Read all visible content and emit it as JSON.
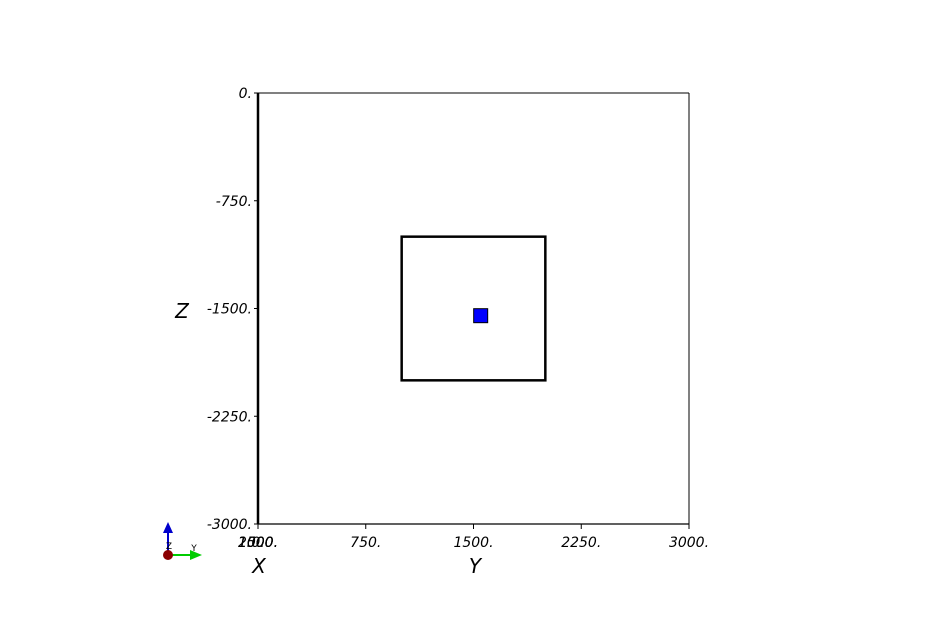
{
  "chart_data": {
    "type": "scatter",
    "xlabel": "Y",
    "ylabel": "Z",
    "x_axis_side_label": "X",
    "xlim": [
      0,
      3000
    ],
    "ylim": [
      -3000,
      0
    ],
    "x_ticks": [
      {
        "value": 0,
        "label": "0."
      },
      {
        "value": 750,
        "label": "750."
      },
      {
        "value": 1500,
        "label": "1500."
      },
      {
        "value": 2250,
        "label": "2250."
      },
      {
        "value": 3000,
        "label": "3000."
      }
    ],
    "x_overlap_labels": [
      "1000.",
      "1500.",
      "2000."
    ],
    "y_ticks": [
      {
        "value": 0,
        "label": "0."
      },
      {
        "value": -750,
        "label": "-750."
      },
      {
        "value": -1500,
        "label": "-1500."
      },
      {
        "value": -2250,
        "label": "-2250."
      },
      {
        "value": -3000,
        "label": "-3000."
      }
    ],
    "rectangle": {
      "x": [
        1000,
        2000
      ],
      "y": [
        -2000,
        -1000
      ],
      "color": "#000000"
    },
    "points": [
      {
        "x": 1550,
        "y": -1550,
        "color": "#0000ff"
      }
    ],
    "grid": false,
    "orientation_widget": {
      "labels": [
        "Z",
        "Y"
      ],
      "colors": [
        "#0000cc",
        "#00cc00",
        "#8b0000"
      ]
    }
  }
}
